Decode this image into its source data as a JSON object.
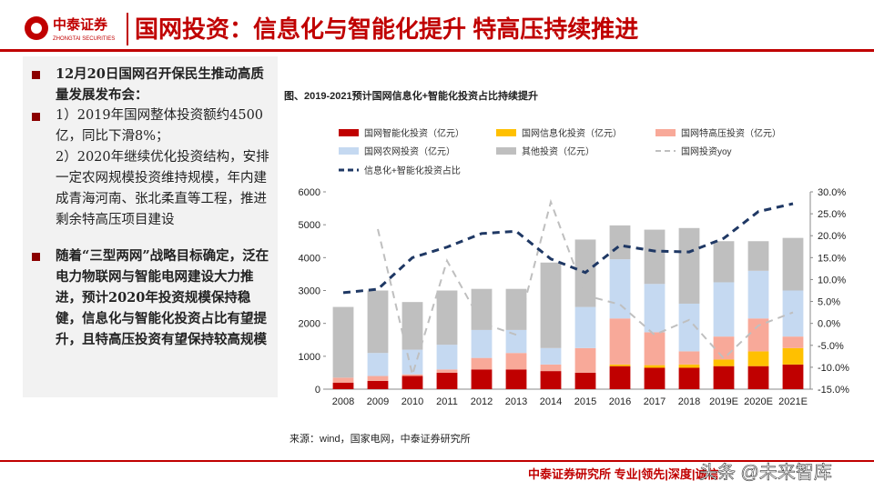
{
  "header": {
    "logo_cn": "中泰证券",
    "logo_en": "ZHONGTAI SECURITIES",
    "title": "国网投资：信息化与智能化提升 特高压持续推进"
  },
  "left_panel": {
    "bullets": [
      "12月20日国网召开保民生推动高质量发展发布会：",
      "1）2019年国网整体投资额约4500亿，同比下滑8%；",
      "2）2020年继续优化投资结构，安排一定农网规模投资维持规模，年内建成青海河南、张北柔直等工程，推进剩余特高压项目建设",
      "随着“三型两网”战略目标确定，泛在电力物联网与智能电网建设大力推进，预计2020年投资规模保持稳健，信息化与智能化投资占比有望提升，且特高压投资有望保持较高规模"
    ]
  },
  "chart_data": {
    "type": "bar",
    "stacked": true,
    "title": "图、2019-2021预计国网信息化+智能化投资占比持续提升",
    "source": "来源：wind，国家电网，中泰证券研究所",
    "categories": [
      "2008",
      "2009",
      "2010",
      "2011",
      "2012",
      "2013",
      "2014",
      "2015",
      "2016",
      "2017",
      "2018",
      "2019E",
      "2020E",
      "2021E"
    ],
    "series": [
      {
        "name": "国网智能化投资（亿元）",
        "color": "#c00000",
        "values": [
          200,
          250,
          400,
          500,
          600,
          600,
          550,
          500,
          700,
          650,
          650,
          700,
          700,
          750
        ]
      },
      {
        "name": "国网信息化投资（亿元）",
        "color": "#ffc000",
        "values": [
          0,
          0,
          0,
          0,
          0,
          0,
          0,
          0,
          50,
          80,
          100,
          200,
          450,
          500
        ]
      },
      {
        "name": "国网特高压投资（亿元）",
        "color": "#f8a999",
        "values": [
          150,
          150,
          50,
          100,
          350,
          500,
          200,
          750,
          1400,
          1000,
          400,
          700,
          1000,
          350
        ]
      },
      {
        "name": "国网农网投资（亿元）",
        "color": "#c5d9f1",
        "values": [
          0,
          700,
          750,
          750,
          850,
          700,
          500,
          1250,
          1800,
          1470,
          1450,
          1650,
          1450,
          1400
        ]
      },
      {
        "name": "其他投资（亿元）",
        "color": "#bfbfbf",
        "values": [
          2150,
          1900,
          1450,
          1650,
          1250,
          1250,
          2600,
          2050,
          1030,
          1650,
          2300,
          1250,
          900,
          1600
        ]
      },
      {
        "name": "国网投资yoy",
        "color": "#bfbfbf",
        "type": "line",
        "axis": "y2",
        "dashed": true,
        "values": [
          null,
          21.5,
          -11.7,
          14.3,
          0.1,
          -2.6,
          27.7,
          6.4,
          4.3,
          -2.6,
          0.8,
          -8,
          -0.5,
          2.5
        ]
      },
      {
        "name": "信息化+智能化投资占比",
        "color": "#1f3864",
        "type": "line",
        "axis": "y2",
        "dashed": true,
        "values": [
          7,
          7.8,
          15,
          17.4,
          20.5,
          21,
          14.7,
          11.6,
          17.8,
          16.5,
          16.3,
          19.4,
          25.5,
          27.3
        ]
      }
    ],
    "ylim": [
      0,
      6000
    ],
    "yticks": [
      0,
      1000,
      2000,
      3000,
      4000,
      5000,
      6000
    ],
    "y2lim": [
      -15,
      30
    ],
    "y2ticks": [
      {
        "value": -15,
        "label": "-15.0%"
      },
      {
        "value": -10,
        "label": "-10.0%"
      },
      {
        "value": -5,
        "label": "-5.0%"
      },
      {
        "value": 0,
        "label": "0.0%"
      },
      {
        "value": 5,
        "label": "5.0%"
      },
      {
        "value": 10,
        "label": "10.0%"
      },
      {
        "value": 15,
        "label": "15.0%"
      },
      {
        "value": 20,
        "label": "20.0%"
      },
      {
        "value": 25,
        "label": "25.0%"
      },
      {
        "value": 30,
        "label": "30.0%"
      }
    ],
    "grid": false
  },
  "footer": {
    "text": "中泰证券研究所 专业|领先|深度|诚信",
    "watermark": "头条 @未来智库"
  }
}
